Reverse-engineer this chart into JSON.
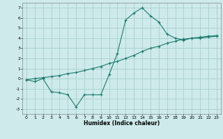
{
  "title": "",
  "xlabel": "Humidex (Indice chaleur)",
  "ylabel": "",
  "bg_color": "#ceeaea",
  "grid_color": "#aacfcf",
  "line_color": "#1a7a6e",
  "xlim": [
    -0.5,
    23.5
  ],
  "ylim": [
    -3.5,
    7.5
  ],
  "xticks": [
    0,
    1,
    2,
    3,
    4,
    5,
    6,
    7,
    8,
    9,
    10,
    11,
    12,
    13,
    14,
    15,
    16,
    17,
    18,
    19,
    20,
    21,
    22,
    23
  ],
  "yticks": [
    -3,
    -2,
    -1,
    0,
    1,
    2,
    3,
    4,
    5,
    6,
    7
  ],
  "line1_x": [
    0,
    1,
    2,
    3,
    4,
    5,
    6,
    7,
    8,
    9,
    10,
    11,
    12,
    13,
    14,
    15,
    16,
    17,
    18,
    19,
    20,
    21,
    22,
    23
  ],
  "line1_y": [
    -0.1,
    -0.3,
    0.0,
    -1.3,
    -1.4,
    -1.6,
    -2.8,
    -1.6,
    -1.6,
    -1.6,
    0.4,
    2.5,
    5.8,
    6.5,
    7.0,
    6.2,
    5.6,
    4.4,
    4.0,
    3.8,
    4.0,
    4.0,
    4.1,
    4.2
  ],
  "line2_x": [
    0,
    1,
    2,
    3,
    4,
    5,
    6,
    7,
    8,
    9,
    10,
    11,
    12,
    13,
    14,
    15,
    16,
    17,
    18,
    19,
    20,
    21,
    22,
    23
  ],
  "line2_y": [
    -0.1,
    -0.0,
    0.1,
    0.2,
    0.3,
    0.5,
    0.6,
    0.8,
    1.0,
    1.2,
    1.5,
    1.7,
    2.0,
    2.3,
    2.7,
    3.0,
    3.2,
    3.5,
    3.7,
    3.9,
    4.0,
    4.1,
    4.2,
    4.25
  ]
}
